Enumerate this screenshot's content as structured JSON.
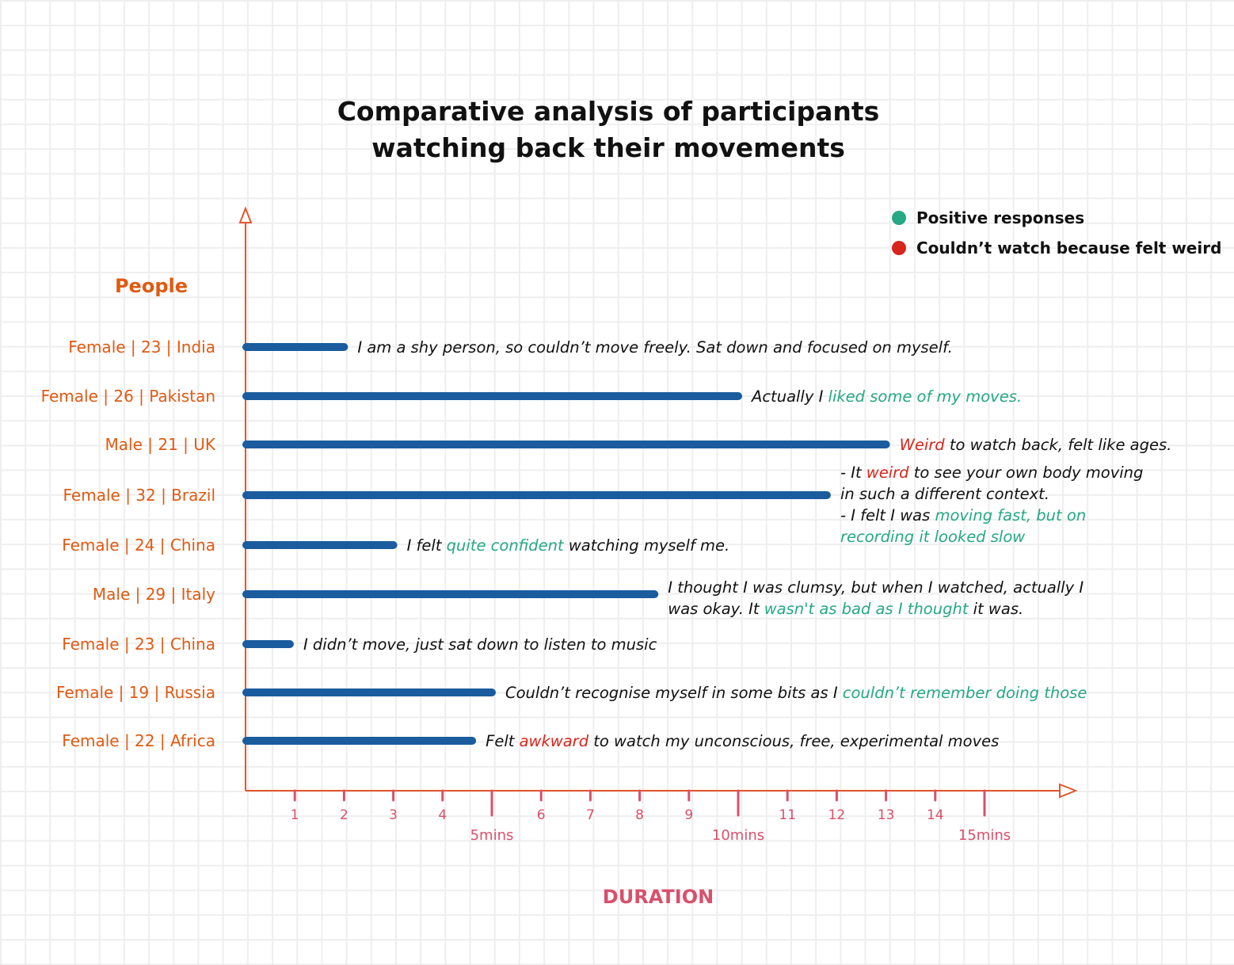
{
  "colors": {
    "axis": "#e4572e",
    "label": "#e05a12",
    "tick": "#d9506b",
    "bar": "#1a5c9e",
    "positive": "#27a885",
    "weird": "#d7261b",
    "text": "#111111"
  },
  "chart_data": {
    "type": "bar",
    "orientation": "horizontal",
    "title": [
      "Comparative analysis of participants",
      "watching back their movements"
    ],
    "ylabel": "People",
    "xlabel": "DURATION",
    "xlim": [
      0,
      16.5
    ],
    "x_ticks": [
      1,
      2,
      3,
      4,
      6,
      7,
      8,
      9,
      11,
      12,
      13,
      14
    ],
    "x_major_ticks": [
      {
        "value": 5,
        "label": "5mins"
      },
      {
        "value": 10,
        "label": "10mins"
      },
      {
        "value": 15,
        "label": "15mins"
      }
    ],
    "legend": {
      "placement": "top-right",
      "items": [
        {
          "label": "Positive responses",
          "color": "#27a885"
        },
        {
          "label": "Couldn’t watch because felt weird",
          "color": "#d7261b"
        }
      ]
    },
    "categories": [
      "Female | 23 | India",
      "Female | 26 | Pakistan",
      "Male | 21 | UK",
      "Female | 32 | Brazil",
      "Female | 24 | China",
      "Male | 29 | Italy",
      "Female | 23 | China",
      "Female | 19 | Russia",
      "Female | 22 | Africa"
    ],
    "values": [
      2,
      10,
      13,
      11.8,
      3,
      8.3,
      0.9,
      5,
      4.6
    ],
    "annotations": [
      [
        [
          {
            "t": "I am a shy person, so couldn’t move freely. Sat down and focused on myself.",
            "c": "text"
          }
        ]
      ],
      [
        [
          {
            "t": "Actually I ",
            "c": "text"
          },
          {
            "t": "liked some of my moves.",
            "c": "positive"
          }
        ]
      ],
      [
        [
          {
            "t": "Weird",
            "c": "weird"
          },
          {
            "t": " to watch back, felt like ages.",
            "c": "text"
          }
        ]
      ],
      [
        [
          {
            "t": "- It ",
            "c": "text"
          },
          {
            "t": "weird",
            "c": "weird"
          },
          {
            "t": " to see your own body moving",
            "c": "text"
          }
        ],
        [
          {
            "t": "in such a different context.",
            "c": "text"
          }
        ],
        [
          {
            "t": "- I felt I was ",
            "c": "text"
          },
          {
            "t": "moving fast, but on",
            "c": "positive"
          }
        ],
        [
          {
            "t": "recording it looked slow",
            "c": "positive"
          }
        ]
      ],
      [
        [
          {
            "t": "I felt ",
            "c": "text"
          },
          {
            "t": "quite confident",
            "c": "positive"
          },
          {
            "t": " watching myself me.",
            "c": "text"
          }
        ]
      ],
      [
        [
          {
            "t": "I thought I was clumsy, but when I watched, actually I",
            "c": "text"
          }
        ],
        [
          {
            "t": "was okay. It ",
            "c": "text"
          },
          {
            "t": "wasn't as bad as I thought",
            "c": "positive"
          },
          {
            "t": " it was.",
            "c": "text"
          }
        ]
      ],
      [
        [
          {
            "t": "I didn’t move, just sat down to listen to music",
            "c": "text"
          }
        ]
      ],
      [
        [
          {
            "t": "Couldn’t recognise myself in some bits as I ",
            "c": "text"
          },
          {
            "t": "couldn’t remember doing those",
            "c": "positive"
          }
        ]
      ],
      [
        [
          {
            "t": "Felt ",
            "c": "text"
          },
          {
            "t": "awkward",
            "c": "weird"
          },
          {
            "t": " to watch my unconscious, free, experimental moves",
            "c": "text"
          }
        ]
      ]
    ]
  }
}
